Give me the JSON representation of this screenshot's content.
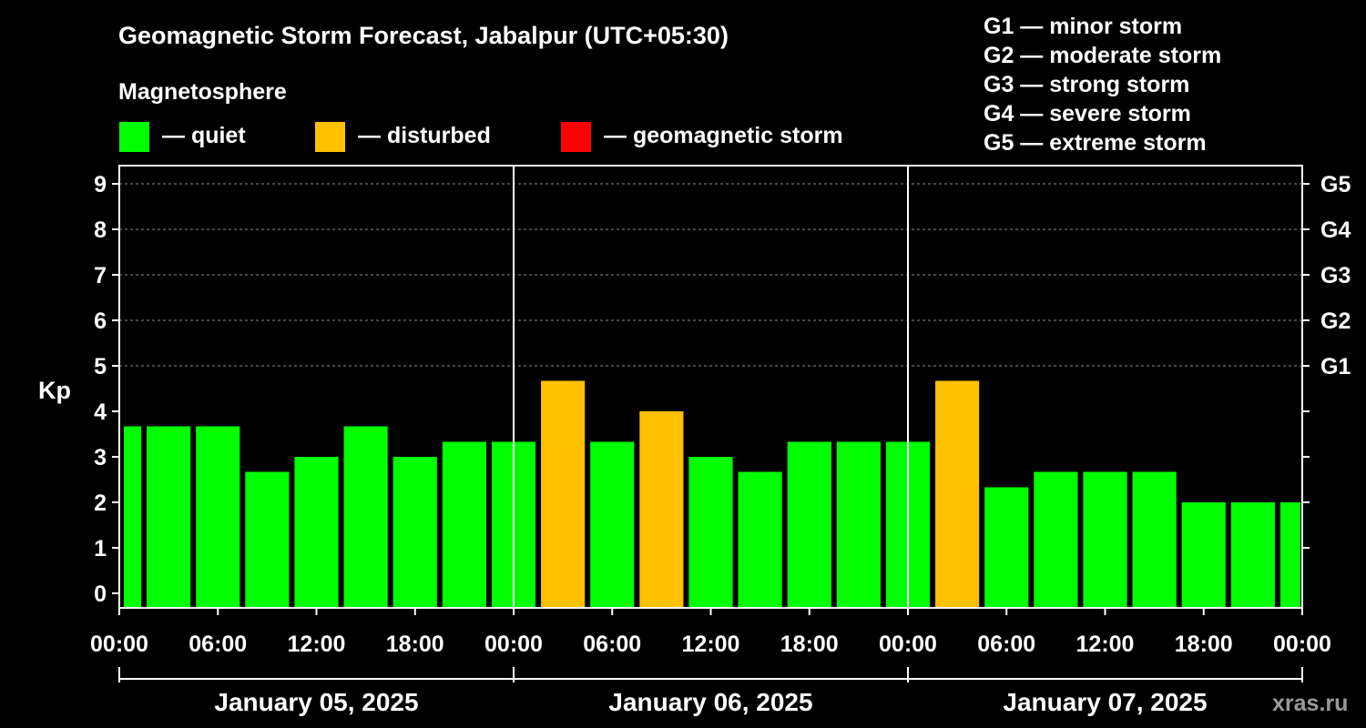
{
  "chart_data": {
    "type": "bar",
    "title": "Geomagnetic Storm Forecast, Jabalpur (UTC+05:30)",
    "subtitle": "Magnetosphere",
    "ylabel": "Kp",
    "ylim": [
      0,
      9
    ],
    "yticks": [
      0,
      1,
      2,
      3,
      4,
      5,
      6,
      7,
      8,
      9
    ],
    "right_ticks": [
      {
        "kp": 5,
        "label": "G1"
      },
      {
        "kp": 6,
        "label": "G2"
      },
      {
        "kp": 7,
        "label": "G3"
      },
      {
        "kp": 8,
        "label": "G4"
      },
      {
        "kp": 9,
        "label": "G5"
      }
    ],
    "x_hours_total": 72,
    "x_ticks": [
      {
        "hour": 0,
        "label": "00:00"
      },
      {
        "hour": 6,
        "label": "06:00"
      },
      {
        "hour": 12,
        "label": "12:00"
      },
      {
        "hour": 18,
        "label": "18:00"
      },
      {
        "hour": 24,
        "label": "00:00"
      },
      {
        "hour": 30,
        "label": "06:00"
      },
      {
        "hour": 36,
        "label": "12:00"
      },
      {
        "hour": 42,
        "label": "18:00"
      },
      {
        "hour": 48,
        "label": "00:00"
      },
      {
        "hour": 54,
        "label": "06:00"
      },
      {
        "hour": 60,
        "label": "12:00"
      },
      {
        "hour": 66,
        "label": "18:00"
      },
      {
        "hour": 72,
        "label": "00:00"
      }
    ],
    "days": [
      {
        "label": "January 05, 2025",
        "start_hour": 0,
        "end_hour": 24
      },
      {
        "label": "January 06, 2025",
        "start_hour": 24,
        "end_hour": 48
      },
      {
        "label": "January 07, 2025",
        "start_hour": 48,
        "end_hour": 72
      }
    ],
    "bars": [
      {
        "start_hour": 0,
        "end_hour": 1.5,
        "kp": 3.67,
        "status": "quiet"
      },
      {
        "start_hour": 1.5,
        "end_hour": 4.5,
        "kp": 3.67,
        "status": "quiet"
      },
      {
        "start_hour": 4.5,
        "end_hour": 7.5,
        "kp": 3.67,
        "status": "quiet"
      },
      {
        "start_hour": 7.5,
        "end_hour": 10.5,
        "kp": 2.67,
        "status": "quiet"
      },
      {
        "start_hour": 10.5,
        "end_hour": 13.5,
        "kp": 3.0,
        "status": "quiet"
      },
      {
        "start_hour": 13.5,
        "end_hour": 16.5,
        "kp": 3.67,
        "status": "quiet"
      },
      {
        "start_hour": 16.5,
        "end_hour": 19.5,
        "kp": 3.0,
        "status": "quiet"
      },
      {
        "start_hour": 19.5,
        "end_hour": 22.5,
        "kp": 3.33,
        "status": "quiet"
      },
      {
        "start_hour": 22.5,
        "end_hour": 25.5,
        "kp": 3.33,
        "status": "quiet"
      },
      {
        "start_hour": 25.5,
        "end_hour": 28.5,
        "kp": 4.67,
        "status": "disturbed"
      },
      {
        "start_hour": 28.5,
        "end_hour": 31.5,
        "kp": 3.33,
        "status": "quiet"
      },
      {
        "start_hour": 31.5,
        "end_hour": 34.5,
        "kp": 4.0,
        "status": "disturbed"
      },
      {
        "start_hour": 34.5,
        "end_hour": 37.5,
        "kp": 3.0,
        "status": "quiet"
      },
      {
        "start_hour": 37.5,
        "end_hour": 40.5,
        "kp": 2.67,
        "status": "quiet"
      },
      {
        "start_hour": 40.5,
        "end_hour": 43.5,
        "kp": 3.33,
        "status": "quiet"
      },
      {
        "start_hour": 43.5,
        "end_hour": 46.5,
        "kp": 3.33,
        "status": "quiet"
      },
      {
        "start_hour": 46.5,
        "end_hour": 49.5,
        "kp": 3.33,
        "status": "quiet"
      },
      {
        "start_hour": 49.5,
        "end_hour": 52.5,
        "kp": 4.67,
        "status": "disturbed"
      },
      {
        "start_hour": 52.5,
        "end_hour": 55.5,
        "kp": 2.33,
        "status": "quiet"
      },
      {
        "start_hour": 55.5,
        "end_hour": 58.5,
        "kp": 2.67,
        "status": "quiet"
      },
      {
        "start_hour": 58.5,
        "end_hour": 61.5,
        "kp": 2.67,
        "status": "quiet"
      },
      {
        "start_hour": 61.5,
        "end_hour": 64.5,
        "kp": 2.67,
        "status": "quiet"
      },
      {
        "start_hour": 64.5,
        "end_hour": 67.5,
        "kp": 2.0,
        "status": "quiet"
      },
      {
        "start_hour": 67.5,
        "end_hour": 70.5,
        "kp": 2.0,
        "status": "quiet"
      },
      {
        "start_hour": 70.5,
        "end_hour": 72.0,
        "kp": 2.0,
        "status": "quiet"
      }
    ],
    "legend": [
      {
        "status": "quiet",
        "label": "— quiet",
        "color": "#00ff00"
      },
      {
        "status": "disturbed",
        "label": "— disturbed",
        "color": "#ffc000"
      },
      {
        "status": "storm",
        "label": "— geomagnetic storm",
        "color": "#ff0000"
      }
    ],
    "storm_scale": [
      "G1 — minor storm",
      "G2 — moderate storm",
      "G3 — strong storm",
      "G4 — severe storm",
      "G5 — extreme storm"
    ],
    "grid": true
  },
  "watermark": "xras.ru",
  "colors": {
    "background": "#000000",
    "foreground": "#ffffff",
    "grid": "#8c8c8c",
    "quiet": "#00ff00",
    "disturbed": "#ffc000",
    "storm": "#ff0000"
  }
}
